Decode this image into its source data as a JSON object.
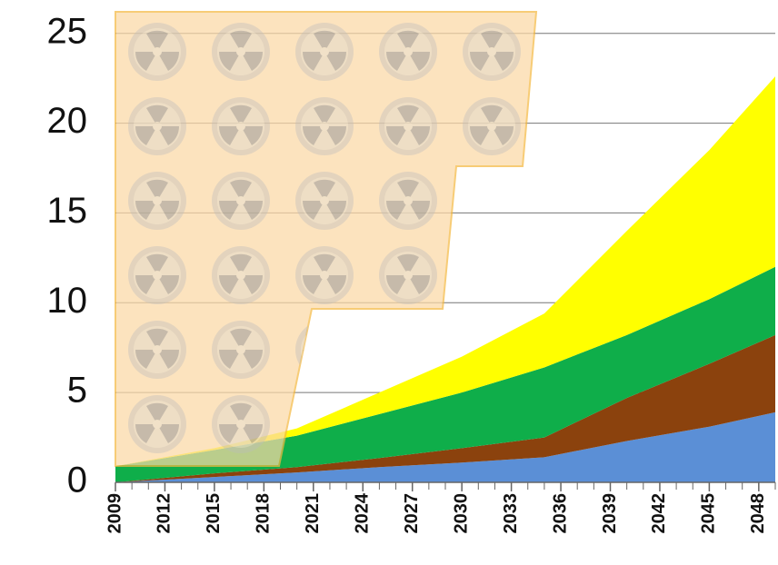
{
  "chart_data": {
    "type": "stacked_area",
    "x": [
      2009,
      2015,
      2020,
      2025,
      2030,
      2035,
      2040,
      2045,
      2049
    ],
    "series": [
      {
        "color": "#5b8fd6",
        "values": [
          0,
          0.3,
          0.55,
          0.85,
          1.1,
          1.4,
          2.3,
          3.1,
          3.9
        ]
      },
      {
        "color": "#8b420d",
        "values": [
          0,
          0.2,
          0.3,
          0.5,
          0.8,
          1.1,
          2.4,
          3.5,
          4.3
        ]
      },
      {
        "color": "#0fae4a",
        "values": [
          0.9,
          1.3,
          1.75,
          2.45,
          3.1,
          3.9,
          3.5,
          3.6,
          3.8
        ]
      },
      {
        "color": "#ffff00",
        "values": [
          0,
          0.1,
          0.4,
          1.2,
          2.0,
          3.0,
          5.8,
          8.3,
          10.6
        ]
      }
    ],
    "xlim": [
      2009,
      2049
    ],
    "xticks": [
      2009,
      2012,
      2015,
      2018,
      2021,
      2024,
      2027,
      2030,
      2033,
      2036,
      2039,
      2042,
      2045,
      2048
    ],
    "ylim": [
      0,
      26.2
    ],
    "yticks": [
      0,
      5,
      10,
      15,
      20,
      25
    ],
    "grid": true
  }
}
